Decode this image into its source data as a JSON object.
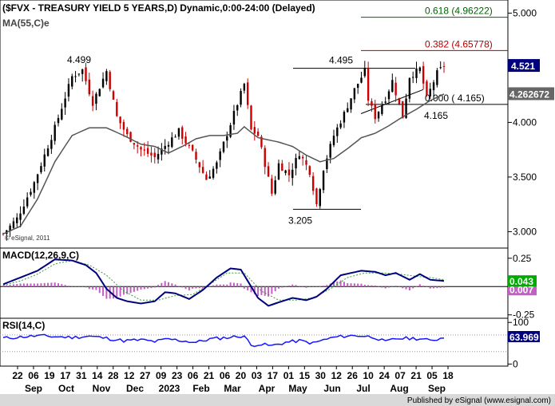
{
  "title": "($FVX - TREASURY YIELD 5 YEARS,D) Dynamic,0:00-24:00 (Delayed)",
  "ma_label": "MA(55,C)e",
  "watermark": "© eSignal, 2011",
  "footer": "Published by eSignal (www.esignal.com)",
  "macd_label": "MACD(12,26,9,C)",
  "rsi_label": "RSI(14,C)",
  "colors": {
    "candle_up": "#000000",
    "candle_down": "#cc0000",
    "ma": "#555555",
    "macd": "#00007f",
    "signal": "#30a030",
    "histogram": "#c060c0",
    "rsi": "#1515ff",
    "fib_green": "#006400",
    "fib_red": "#b00000",
    "price_box": "#00007f",
    "ma_box": "#666666",
    "macd_box": "#00aa00"
  },
  "chart_data": {
    "type": "candlestick",
    "x_labels": {
      "days": [
        "22",
        "06",
        "19",
        "17",
        "31",
        "14",
        "28",
        "12",
        "27",
        "09",
        "23",
        "06",
        "21",
        "06",
        "20",
        "03",
        "17",
        "01",
        "15",
        "30",
        "12",
        "26",
        "10",
        "24",
        "07",
        "21",
        "05",
        "18"
      ],
      "months": [
        "Sep",
        "Oct",
        "Nov",
        "Dec",
        "2023",
        "Feb",
        "Mar",
        "Apr",
        "May",
        "Jun",
        "Jul",
        "Aug",
        "Sep"
      ]
    },
    "price_axis": {
      "ylim": [
        2.85,
        5.12
      ],
      "ticks": [
        "5.000",
        "4.500",
        "4.000",
        "3.500",
        "3.000"
      ]
    },
    "markers": {
      "last_price": "4.521",
      "ma_value": "4.262672"
    },
    "annotations": [
      {
        "text": "4.499",
        "value": 4.499
      },
      {
        "text": "4.495",
        "value": 4.495
      },
      {
        "text": "3.205",
        "value": 3.205
      },
      {
        "text": "4.165",
        "value": 4.165
      }
    ],
    "fib_levels": [
      {
        "label": "0.618 (4.96222)",
        "value": 4.96222,
        "color": "green"
      },
      {
        "label": "0.382 (4.65778)",
        "value": 4.65778,
        "color": "red"
      },
      {
        "label": "0.000 ( 4.165)",
        "value": 4.165,
        "color": "black"
      }
    ],
    "price_path": [
      [
        0,
        2.98
      ],
      [
        4,
        3.12
      ],
      [
        9,
        3.45
      ],
      [
        15,
        3.95
      ],
      [
        20,
        4.42
      ],
      [
        23,
        4.48
      ],
      [
        26,
        4.18
      ],
      [
        30,
        4.47
      ],
      [
        33,
        4.05
      ],
      [
        36,
        3.88
      ],
      [
        40,
        3.75
      ],
      [
        44,
        3.68
      ],
      [
        48,
        3.82
      ],
      [
        51,
        3.92
      ],
      [
        55,
        3.72
      ],
      [
        59,
        3.48
      ],
      [
        62,
        3.62
      ],
      [
        67,
        4.08
      ],
      [
        70,
        4.35
      ],
      [
        72,
        3.93
      ],
      [
        74,
        3.88
      ],
      [
        76,
        3.62
      ],
      [
        78,
        3.35
      ],
      [
        80,
        3.62
      ],
      [
        83,
        3.52
      ],
      [
        86,
        3.72
      ],
      [
        89,
        3.55
      ],
      [
        91,
        3.25
      ],
      [
        93,
        3.58
      ],
      [
        96,
        3.88
      ],
      [
        99,
        4.08
      ],
      [
        102,
        4.3
      ],
      [
        105,
        4.47
      ],
      [
        106,
        4.21
      ],
      [
        108,
        4.05
      ],
      [
        111,
        4.22
      ],
      [
        113,
        4.38
      ],
      [
        116,
        4.05
      ],
      [
        118,
        4.42
      ],
      [
        121,
        4.49
      ],
      [
        123,
        4.22
      ],
      [
        126,
        4.45
      ],
      [
        128,
        4.52
      ]
    ],
    "ma_path": [
      [
        0,
        2.98
      ],
      [
        5,
        3.05
      ],
      [
        10,
        3.3
      ],
      [
        15,
        3.64
      ],
      [
        20,
        3.88
      ],
      [
        25,
        3.95
      ],
      [
        30,
        3.95
      ],
      [
        35,
        3.88
      ],
      [
        40,
        3.8
      ],
      [
        44,
        3.78
      ],
      [
        48,
        3.72
      ],
      [
        52,
        3.78
      ],
      [
        56,
        3.85
      ],
      [
        60,
        3.88
      ],
      [
        64,
        3.88
      ],
      [
        68,
        3.9
      ],
      [
        70,
        3.96
      ],
      [
        74,
        3.86
      ],
      [
        80,
        3.82
      ],
      [
        84,
        3.78
      ],
      [
        88,
        3.7
      ],
      [
        92,
        3.64
      ],
      [
        96,
        3.67
      ],
      [
        100,
        3.76
      ],
      [
        104,
        3.86
      ],
      [
        108,
        3.9
      ],
      [
        112,
        3.97
      ],
      [
        116,
        4.05
      ],
      [
        120,
        4.12
      ],
      [
        124,
        4.2
      ],
      [
        128,
        4.26
      ]
    ],
    "macd_panel": {
      "ticks": [
        "0.25",
        "0.000",
        "-0.25"
      ],
      "macd_value": "0.043",
      "signal_value": "0.007",
      "ylim": [
        -0.28,
        0.34
      ],
      "macd_path": [
        [
          0,
          0.02
        ],
        [
          5,
          0.08
        ],
        [
          10,
          0.14
        ],
        [
          15,
          0.24
        ],
        [
          20,
          0.23
        ],
        [
          24,
          0.19
        ],
        [
          27,
          0.12
        ],
        [
          30,
          -0.02
        ],
        [
          33,
          -0.1
        ],
        [
          36,
          -0.13
        ],
        [
          40,
          -0.15
        ],
        [
          44,
          -0.13
        ],
        [
          47,
          -0.05
        ],
        [
          50,
          -0.06
        ],
        [
          54,
          -0.11
        ],
        [
          58,
          -0.03
        ],
        [
          62,
          0.08
        ],
        [
          66,
          0.16
        ],
        [
          69,
          0.15
        ],
        [
          71,
          0.05
        ],
        [
          74,
          -0.1
        ],
        [
          77,
          -0.17
        ],
        [
          80,
          -0.14
        ],
        [
          84,
          -0.1
        ],
        [
          88,
          -0.12
        ],
        [
          91,
          -0.09
        ],
        [
          94,
          -0.02
        ],
        [
          98,
          0.1
        ],
        [
          101,
          0.12
        ],
        [
          104,
          0.14
        ],
        [
          108,
          0.13
        ],
        [
          111,
          0.1
        ],
        [
          114,
          0.12
        ],
        [
          118,
          0.06
        ],
        [
          121,
          0.11
        ],
        [
          124,
          0.06
        ],
        [
          128,
          0.05
        ]
      ],
      "signal_path": [
        [
          0,
          0.01
        ],
        [
          5,
          0.05
        ],
        [
          10,
          0.11
        ],
        [
          15,
          0.2
        ],
        [
          20,
          0.23
        ],
        [
          25,
          0.19
        ],
        [
          30,
          0.1
        ],
        [
          35,
          -0.04
        ],
        [
          40,
          -0.12
        ],
        [
          45,
          -0.12
        ],
        [
          50,
          -0.08
        ],
        [
          55,
          -0.07
        ],
        [
          60,
          0.02
        ],
        [
          65,
          0.12
        ],
        [
          70,
          0.12
        ],
        [
          75,
          -0.04
        ],
        [
          80,
          -0.12
        ],
        [
          85,
          -0.12
        ],
        [
          90,
          -0.1
        ],
        [
          95,
          -0.02
        ],
        [
          100,
          0.08
        ],
        [
          105,
          0.12
        ],
        [
          110,
          0.12
        ],
        [
          115,
          0.11
        ],
        [
          120,
          0.09
        ],
        [
          124,
          0.08
        ],
        [
          128,
          0.06
        ]
      ]
    },
    "rsi_panel": {
      "ticks": [
        "100",
        "0"
      ],
      "value": "63.969",
      "ylim": [
        -5,
        110
      ],
      "path": [
        [
          0,
          62
        ],
        [
          5,
          65
        ],
        [
          10,
          68
        ],
        [
          15,
          66
        ],
        [
          20,
          64
        ],
        [
          25,
          67
        ],
        [
          30,
          62
        ],
        [
          35,
          56
        ],
        [
          40,
          58
        ],
        [
          44,
          54
        ],
        [
          48,
          60
        ],
        [
          52,
          56
        ],
        [
          56,
          52
        ],
        [
          60,
          60
        ],
        [
          64,
          63
        ],
        [
          68,
          66
        ],
        [
          70,
          68
        ],
        [
          72,
          44
        ],
        [
          74,
          48
        ],
        [
          78,
          44
        ],
        [
          82,
          52
        ],
        [
          86,
          56
        ],
        [
          90,
          50
        ],
        [
          93,
          58
        ],
        [
          96,
          64
        ],
        [
          100,
          68
        ],
        [
          104,
          68
        ],
        [
          108,
          64
        ],
        [
          111,
          53
        ],
        [
          114,
          61
        ],
        [
          118,
          62
        ],
        [
          121,
          61
        ],
        [
          124,
          56
        ],
        [
          128,
          64
        ]
      ]
    }
  }
}
